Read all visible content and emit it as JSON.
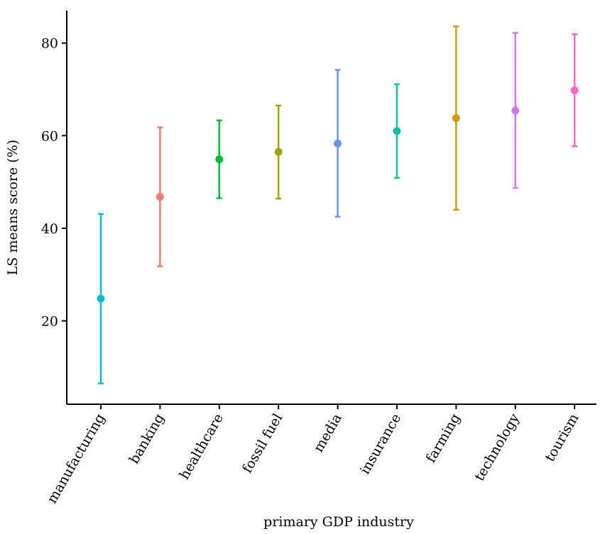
{
  "chart_data": {
    "type": "errorbar",
    "xlabel": "primary GDP industry",
    "ylabel": "LS means score (%)",
    "ylim": [
      2,
      87
    ],
    "yticks": [
      20,
      40,
      60,
      80
    ],
    "grid": false,
    "legend": "none",
    "points": [
      {
        "category": "manufacturing",
        "mean": 24.8,
        "lower": 6.5,
        "upper": 43.1,
        "color": "#00BCD8"
      },
      {
        "category": "banking",
        "mean": 46.8,
        "lower": 31.8,
        "upper": 61.8,
        "color": "#F07B73"
      },
      {
        "category": "healthcare",
        "mean": 54.9,
        "lower": 46.5,
        "upper": 63.3,
        "color": "#00B938"
      },
      {
        "category": "fossil fuel",
        "mean": 56.5,
        "lower": 46.4,
        "upper": 66.5,
        "color": "#9CA40E"
      },
      {
        "category": "media",
        "mean": 58.3,
        "lower": 42.5,
        "upper": 74.2,
        "color": "#6496EF"
      },
      {
        "category": "insurance",
        "mean": 61.0,
        "lower": 50.9,
        "upper": 71.1,
        "color": "#12BE9C"
      },
      {
        "category": "farming",
        "mean": 63.8,
        "lower": 44.0,
        "upper": 83.6,
        "color": "#D29A0F"
      },
      {
        "category": "technology",
        "mean": 65.4,
        "lower": 48.7,
        "upper": 82.2,
        "color": "#D672EF"
      },
      {
        "category": "tourism",
        "mean": 69.8,
        "lower": 57.7,
        "upper": 81.9,
        "color": "#FF66C5"
      }
    ]
  }
}
